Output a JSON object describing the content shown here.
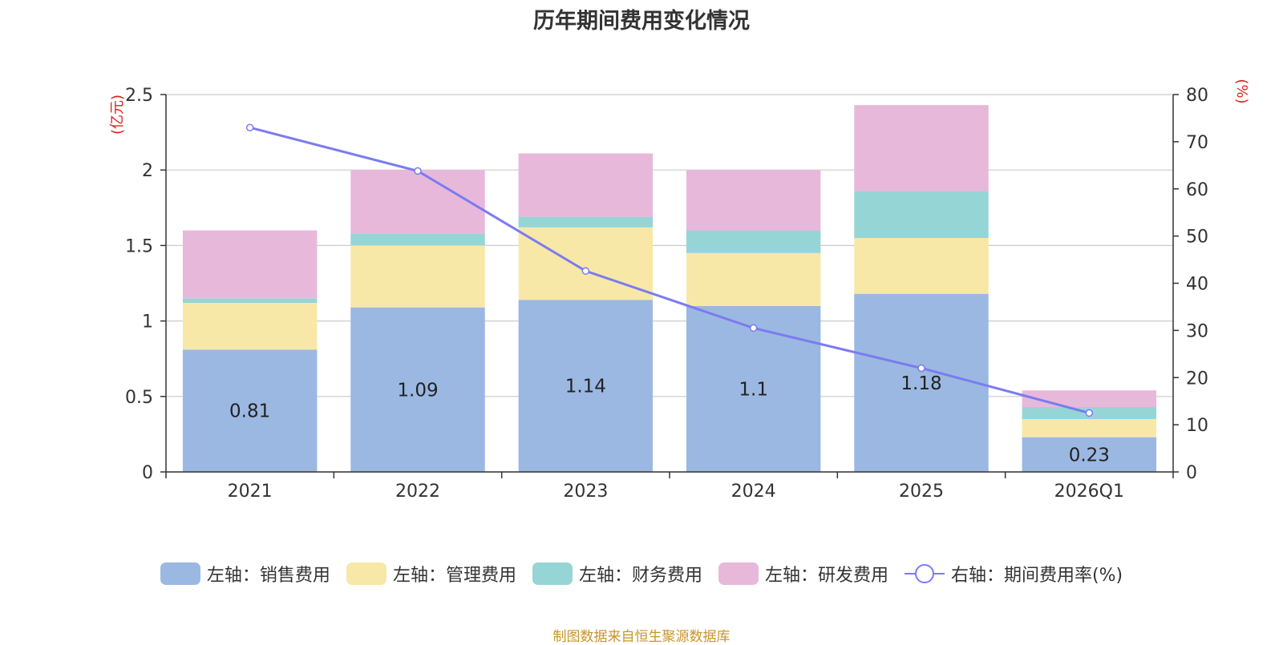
{
  "chart_data": {
    "type": "bar",
    "title": "历年期间费用变化情况",
    "categories": [
      "2021",
      "2022",
      "2023",
      "2024",
      "2025",
      "2026Q1"
    ],
    "y_left": {
      "unit_label": "(亿元)",
      "range": [
        0,
        2.5
      ],
      "ticks": [
        "0",
        "0.5",
        "1",
        "1.5",
        "2",
        "2.5"
      ]
    },
    "y_right": {
      "unit_label": "(%)",
      "range": [
        0,
        80
      ],
      "ticks": [
        "0",
        "10",
        "20",
        "30",
        "40",
        "50",
        "60",
        "70",
        "80"
      ]
    },
    "grid": true,
    "stacked": true,
    "series": [
      {
        "name": "左轴：销售费用",
        "axis": "left",
        "type": "bar",
        "color": "#9bb8e2",
        "values": [
          0.81,
          1.09,
          1.14,
          1.1,
          1.18,
          0.23
        ],
        "data_labels": [
          "0.81",
          "1.09",
          "1.14",
          "1.1",
          "1.18",
          "0.23"
        ]
      },
      {
        "name": "左轴：管理费用",
        "axis": "left",
        "type": "bar",
        "color": "#f7e8a8",
        "values": [
          0.31,
          0.41,
          0.48,
          0.35,
          0.37,
          0.12
        ]
      },
      {
        "name": "左轴：财务费用",
        "axis": "left",
        "type": "bar",
        "color": "#96d5d5",
        "values": [
          0.03,
          0.08,
          0.07,
          0.15,
          0.31,
          0.08
        ]
      },
      {
        "name": "左轴：研发费用",
        "axis": "left",
        "type": "bar",
        "color": "#e8b8da",
        "values": [
          0.45,
          0.42,
          0.42,
          0.4,
          0.57,
          0.11
        ]
      },
      {
        "name": "右轴：期间费用率(%)",
        "axis": "right",
        "type": "line",
        "color": "#7b7bf0",
        "values": [
          73.0,
          63.8,
          42.6,
          30.5,
          22.0,
          12.5
        ]
      }
    ],
    "legend_position": "bottom",
    "source": "制图数据来自恒生聚源数据库"
  }
}
